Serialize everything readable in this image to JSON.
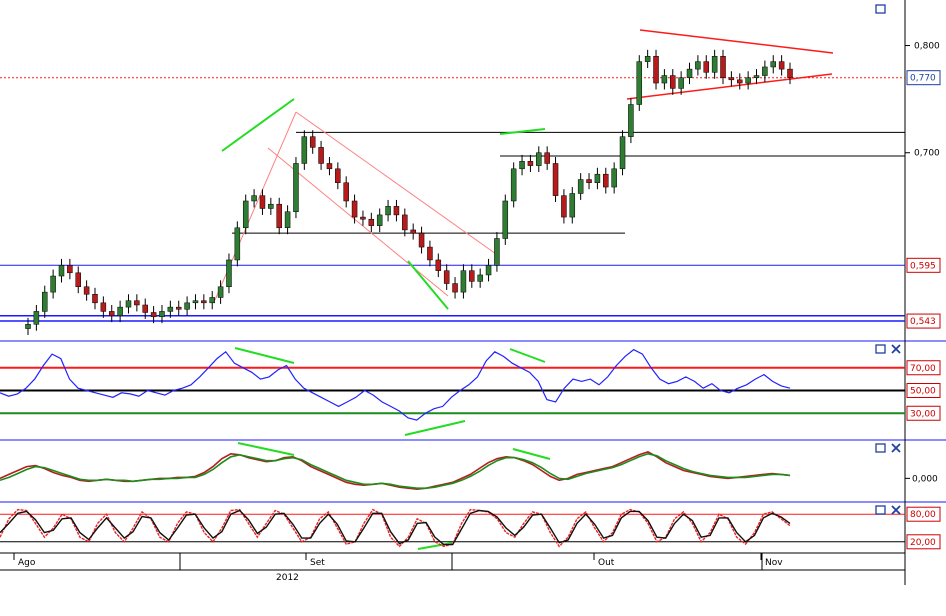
{
  "colors": {
    "candle_up": "#2e7d32",
    "candle_down": "#b71c1c",
    "wick": "#000000",
    "grid_blue": "#1a1aff",
    "trend_red": "#ff1a1a",
    "divergence_green": "#22dd22",
    "rsi_line": "#2222ff",
    "macd_main": "#b41e1e",
    "macd_signal": "#1c8c1c",
    "stoch_k": "#ee2222",
    "stoch_d": "#111111",
    "price_label_red": "#cc0000",
    "price_label_blue": "#1f3fa3"
  },
  "icons": {
    "maximize_icon": "square",
    "close_icon": "x"
  },
  "chart_data": [
    {
      "type": "candlestick",
      "panel": "price",
      "ylim": [
        0.53,
        0.835
      ],
      "y_ticks": [
        "0,800",
        "0,700"
      ],
      "y_tick_values": [
        0.8,
        0.7
      ],
      "y_labels": [
        "0,770",
        "0,595",
        "0,543"
      ],
      "y_label_values": [
        0.77,
        0.595,
        0.543
      ],
      "last_price": 0.77,
      "series_close": [
        0.54,
        0.552,
        0.57,
        0.585,
        0.595,
        0.588,
        0.575,
        0.568,
        0.56,
        0.552,
        0.548,
        0.556,
        0.562,
        0.558,
        0.551,
        0.547,
        0.552,
        0.556,
        0.554,
        0.56,
        0.562,
        0.56,
        0.565,
        0.575,
        0.6,
        0.63,
        0.655,
        0.66,
        0.648,
        0.652,
        0.63,
        0.645,
        0.69,
        0.715,
        0.705,
        0.69,
        0.685,
        0.672,
        0.655,
        0.64,
        0.638,
        0.632,
        0.642,
        0.65,
        0.642,
        0.628,
        0.625,
        0.612,
        0.6,
        0.59,
        0.578,
        0.57,
        0.59,
        0.58,
        0.586,
        0.595,
        0.62,
        0.655,
        0.685,
        0.692,
        0.688,
        0.7,
        0.69,
        0.66,
        0.64,
        0.662,
        0.675,
        0.672,
        0.68,
        0.668,
        0.685,
        0.715,
        0.745,
        0.785,
        0.79,
        0.765,
        0.772,
        0.76,
        0.77,
        0.778,
        0.785,
        0.775,
        0.79,
        0.77,
        0.768,
        0.765,
        0.77,
        0.772,
        0.78,
        0.785,
        0.778,
        0.77
      ],
      "horizontal_lines": [
        {
          "value": 0.77,
          "style": "dotted-red"
        },
        {
          "value": 0.719,
          "style": "black"
        },
        {
          "value": 0.697,
          "style": "black"
        },
        {
          "value": 0.625,
          "style": "black"
        },
        {
          "value": 0.595,
          "style": "blue"
        },
        {
          "value": 0.548,
          "style": "blue"
        },
        {
          "value": 0.543,
          "style": "blue"
        }
      ]
    },
    {
      "type": "line",
      "panel": "rsi",
      "ylim": [
        10,
        90
      ],
      "y_labels": [
        "70,00",
        "50,00",
        "30,00"
      ],
      "y_label_values": [
        70,
        50,
        30
      ],
      "series": [
        {
          "values": [
            48,
            45,
            47,
            52,
            60,
            72,
            82,
            78,
            60,
            52,
            50,
            48,
            46,
            44,
            48,
            47,
            45,
            50,
            48,
            46,
            50,
            52,
            55,
            62,
            70,
            78,
            84,
            74,
            70,
            66,
            60,
            62,
            68,
            72,
            60,
            52,
            48,
            44,
            40,
            36,
            40,
            44,
            50,
            46,
            40,
            36,
            32,
            26,
            24,
            30,
            34,
            36,
            44,
            50,
            55,
            62,
            76,
            84,
            80,
            74,
            70,
            66,
            58,
            42,
            40,
            52,
            60,
            58,
            60,
            55,
            62,
            72,
            80,
            86,
            82,
            70,
            60,
            56,
            58,
            62,
            58,
            52,
            56,
            50,
            48,
            52,
            55,
            60,
            64,
            58,
            54,
            52
          ]
        }
      ]
    },
    {
      "type": "line",
      "panel": "macd",
      "ylim": [
        -0.02,
        0.035
      ],
      "y_labels": [
        "0,000"
      ],
      "y_label_values": [
        0.0
      ],
      "series": [
        {
          "values": [
            0.0,
            0.004,
            0.008,
            0.012,
            0.013,
            0.01,
            0.006,
            0.003,
            0.001,
            -0.002,
            -0.003,
            -0.002,
            -0.001,
            -0.002,
            -0.003,
            -0.003,
            -0.002,
            -0.001,
            0.0,
            0.0,
            0.001,
            0.001,
            0.002,
            0.006,
            0.012,
            0.02,
            0.025,
            0.024,
            0.021,
            0.019,
            0.017,
            0.018,
            0.021,
            0.022,
            0.018,
            0.012,
            0.008,
            0.004,
            0.0,
            -0.004,
            -0.006,
            -0.007,
            -0.006,
            -0.005,
            -0.007,
            -0.009,
            -0.01,
            -0.011,
            -0.01,
            -0.008,
            -0.006,
            -0.004,
            0.0,
            0.004,
            0.01,
            0.016,
            0.02,
            0.022,
            0.021,
            0.018,
            0.014,
            0.008,
            0.002,
            -0.002,
            0.0,
            0.004,
            0.006,
            0.008,
            0.01,
            0.012,
            0.016,
            0.02,
            0.024,
            0.027,
            0.022,
            0.016,
            0.012,
            0.008,
            0.006,
            0.004,
            0.002,
            0.001,
            0.0,
            0.001,
            0.002,
            0.003,
            0.004,
            0.005,
            0.004,
            0.003
          ]
        },
        {
          "values": [
            -0.002,
            0.001,
            0.005,
            0.009,
            0.012,
            0.011,
            0.008,
            0.005,
            0.002,
            -0.001,
            -0.002,
            -0.002,
            -0.001,
            -0.002,
            -0.002,
            -0.003,
            -0.002,
            -0.001,
            -0.001,
            0.0,
            0.0,
            0.001,
            0.001,
            0.004,
            0.009,
            0.016,
            0.022,
            0.024,
            0.022,
            0.02,
            0.018,
            0.018,
            0.02,
            0.021,
            0.019,
            0.014,
            0.01,
            0.006,
            0.002,
            -0.002,
            -0.004,
            -0.006,
            -0.006,
            -0.005,
            -0.006,
            -0.008,
            -0.009,
            -0.01,
            -0.01,
            -0.009,
            -0.007,
            -0.005,
            -0.002,
            0.002,
            0.007,
            0.013,
            0.018,
            0.021,
            0.021,
            0.019,
            0.016,
            0.011,
            0.005,
            0.0,
            -0.001,
            0.002,
            0.005,
            0.007,
            0.009,
            0.011,
            0.014,
            0.018,
            0.022,
            0.025,
            0.023,
            0.018,
            0.014,
            0.01,
            0.007,
            0.005,
            0.003,
            0.002,
            0.001,
            0.001,
            0.001,
            0.002,
            0.003,
            0.004,
            0.004,
            0.003
          ]
        }
      ]
    },
    {
      "type": "line",
      "panel": "stochastic",
      "ylim": [
        0,
        100
      ],
      "y_labels": [
        "80,00",
        "20,00"
      ],
      "y_label_values": [
        80,
        20
      ],
      "series": [
        {
          "values": [
            30,
            70,
            90,
            88,
            60,
            30,
            50,
            80,
            70,
            30,
            20,
            60,
            80,
            40,
            20,
            50,
            85,
            70,
            30,
            20,
            60,
            85,
            80,
            40,
            20,
            50,
            88,
            90,
            60,
            30,
            60,
            88,
            80,
            50,
            20,
            30,
            70,
            85,
            50,
            15,
            20,
            60,
            90,
            80,
            30,
            10,
            30,
            70,
            60,
            20,
            10,
            15,
            60,
            90,
            88,
            85,
            70,
            40,
            30,
            60,
            85,
            80,
            40,
            10,
            30,
            70,
            85,
            50,
            20,
            40,
            80,
            90,
            85,
            60,
            20,
            30,
            70,
            85,
            60,
            20,
            40,
            80,
            70,
            30,
            15,
            40,
            80,
            85,
            70,
            55
          ]
        },
        {
          "values": [
            40,
            60,
            82,
            86,
            68,
            40,
            45,
            70,
            72,
            40,
            25,
            50,
            72,
            50,
            28,
            42,
            75,
            72,
            40,
            24,
            50,
            78,
            80,
            50,
            28,
            42,
            80,
            88,
            68,
            38,
            52,
            80,
            82,
            58,
            28,
            28,
            60,
            80,
            58,
            22,
            20,
            50,
            82,
            82,
            42,
            16,
            24,
            60,
            62,
            30,
            14,
            14,
            48,
            82,
            88,
            86,
            74,
            50,
            34,
            52,
            78,
            80,
            50,
            18,
            24,
            60,
            80,
            58,
            28,
            34,
            72,
            86,
            86,
            66,
            30,
            28,
            60,
            80,
            66,
            30,
            34,
            72,
            72,
            40,
            20,
            34,
            72,
            82,
            74,
            60
          ]
        }
      ]
    }
  ],
  "x_axis": {
    "ticks": [
      "Ago",
      "Set",
      "Out",
      "Nov"
    ],
    "year_label": "2012"
  }
}
